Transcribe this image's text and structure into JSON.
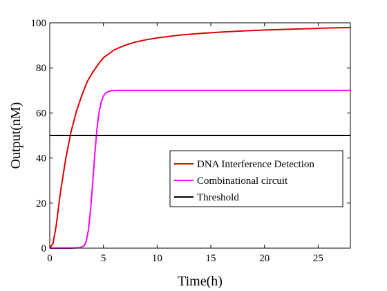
{
  "chart_data": {
    "type": "line",
    "title": "",
    "xlabel": "Time(h)",
    "ylabel": "Output(nM)",
    "xlim": [
      0,
      28
    ],
    "ylim": [
      0,
      100
    ],
    "xticks": [
      0,
      5,
      10,
      15,
      20,
      25
    ],
    "yticks": [
      0,
      20,
      40,
      60,
      80,
      100
    ],
    "grid": false,
    "legend_position": "right",
    "series": [
      {
        "name": "DNA Interference Detection",
        "color": "#e00000",
        "x": [
          0,
          0.3,
          0.6,
          1.0,
          1.5,
          2.0,
          2.5,
          3.0,
          3.5,
          4.0,
          4.5,
          5.0,
          6.0,
          7.0,
          8.0,
          9.0,
          10.0,
          12.0,
          14.0,
          16.0,
          18.0,
          20.0,
          22.0,
          24.0,
          26.0,
          28.0
        ],
        "y": [
          0,
          2,
          10,
          25,
          40,
          52,
          61,
          68,
          74,
          78,
          81.5,
          84.5,
          88,
          90,
          91.5,
          92.5,
          93.3,
          94.5,
          95.3,
          95.9,
          96.4,
          96.8,
          97.1,
          97.4,
          97.7,
          97.9
        ]
      },
      {
        "name": "Combinational circuit",
        "color": "#ff00ff",
        "x": [
          0,
          1.0,
          2.0,
          2.8,
          3.2,
          3.4,
          3.6,
          3.8,
          4.0,
          4.2,
          4.4,
          4.6,
          4.8,
          5.0,
          5.2,
          5.5,
          5.8,
          6.2,
          7.0,
          28.0
        ],
        "y": [
          0,
          0,
          0,
          0.2,
          1,
          3,
          8,
          17,
          29,
          42,
          53,
          60.5,
          65,
          67.5,
          68.8,
          69.6,
          69.9,
          70,
          70,
          70
        ]
      },
      {
        "name": "Threshold",
        "color": "#000000",
        "x": [
          0,
          28
        ],
        "y": [
          50,
          50
        ]
      }
    ]
  }
}
